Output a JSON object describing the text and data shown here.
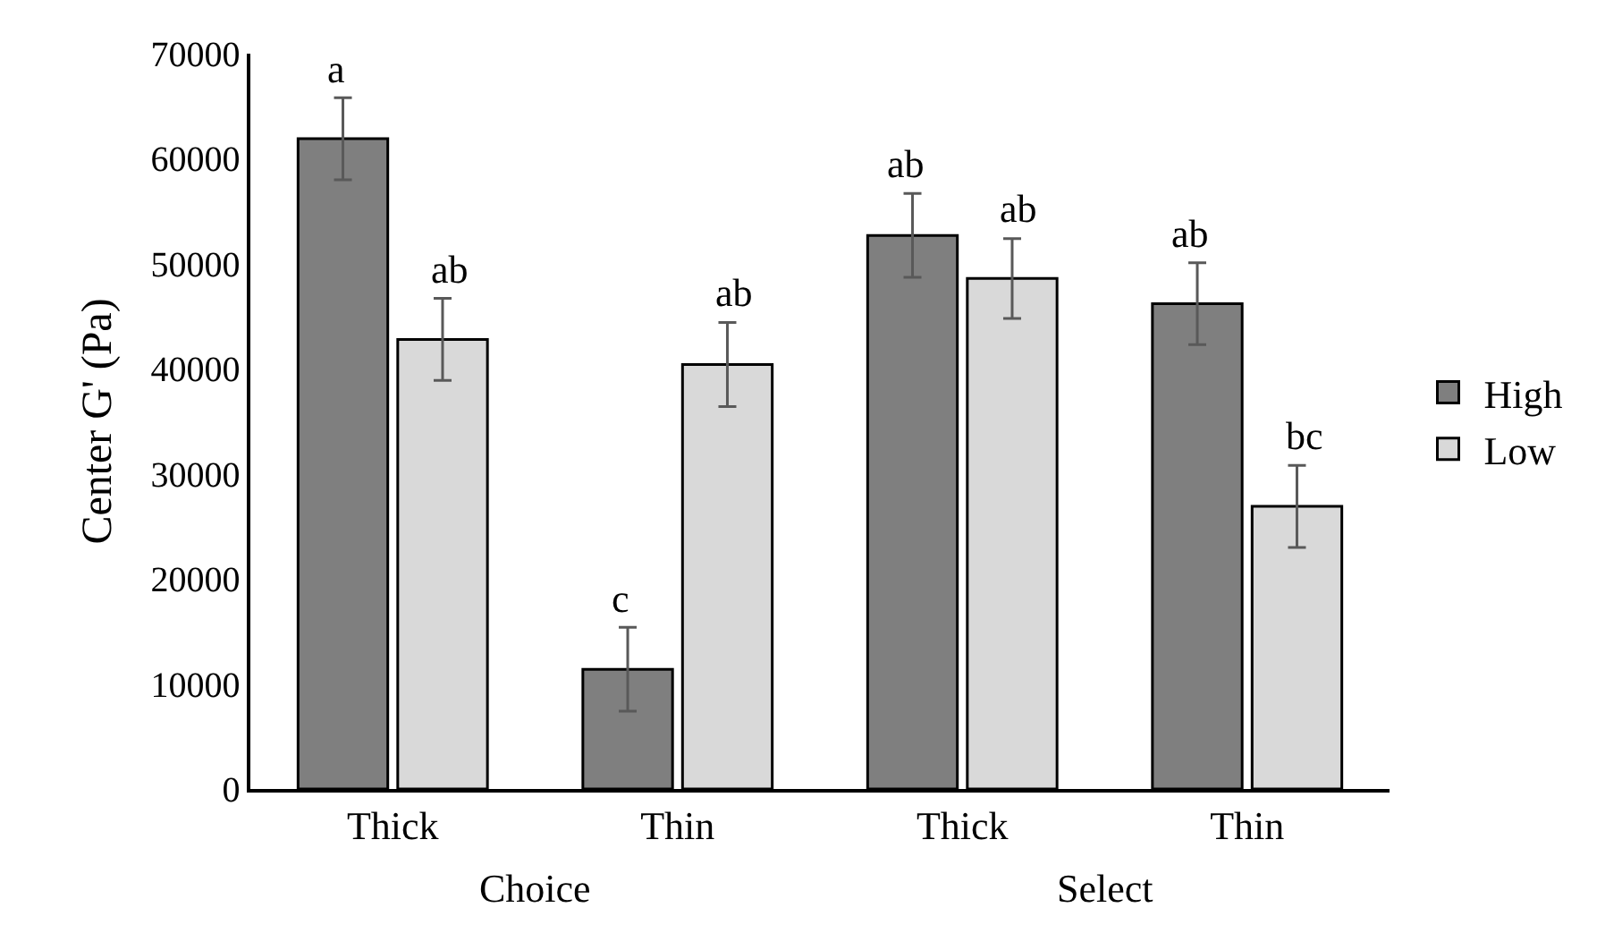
{
  "chart_data": {
    "type": "bar",
    "ylabel": "Center G' (Pa)",
    "categories": [
      "Thick",
      "Thin",
      "Thick",
      "Thin"
    ],
    "series": [
      {
        "name": "High",
        "color": "#7f7f7f",
        "values": [
          61900,
          11400,
          52700,
          46200
        ],
        "errors": [
          3900,
          4000,
          4000,
          3900
        ],
        "value_labels": [
          "a",
          "c",
          "ab",
          "ab"
        ]
      },
      {
        "name": "Low",
        "color": "#d9d9d9",
        "values": [
          42800,
          40400,
          48600,
          26900
        ],
        "errors": [
          3900,
          4000,
          3800,
          3900
        ],
        "value_labels": [
          "ab",
          "ab",
          "ab",
          "bc"
        ]
      }
    ],
    "ylim": [
      0,
      70000
    ],
    "yticks": [
      0,
      10000,
      20000,
      30000,
      40000,
      50000,
      60000,
      70000
    ],
    "annotations": [
      "Choice",
      "Select"
    ],
    "legend": "right"
  }
}
